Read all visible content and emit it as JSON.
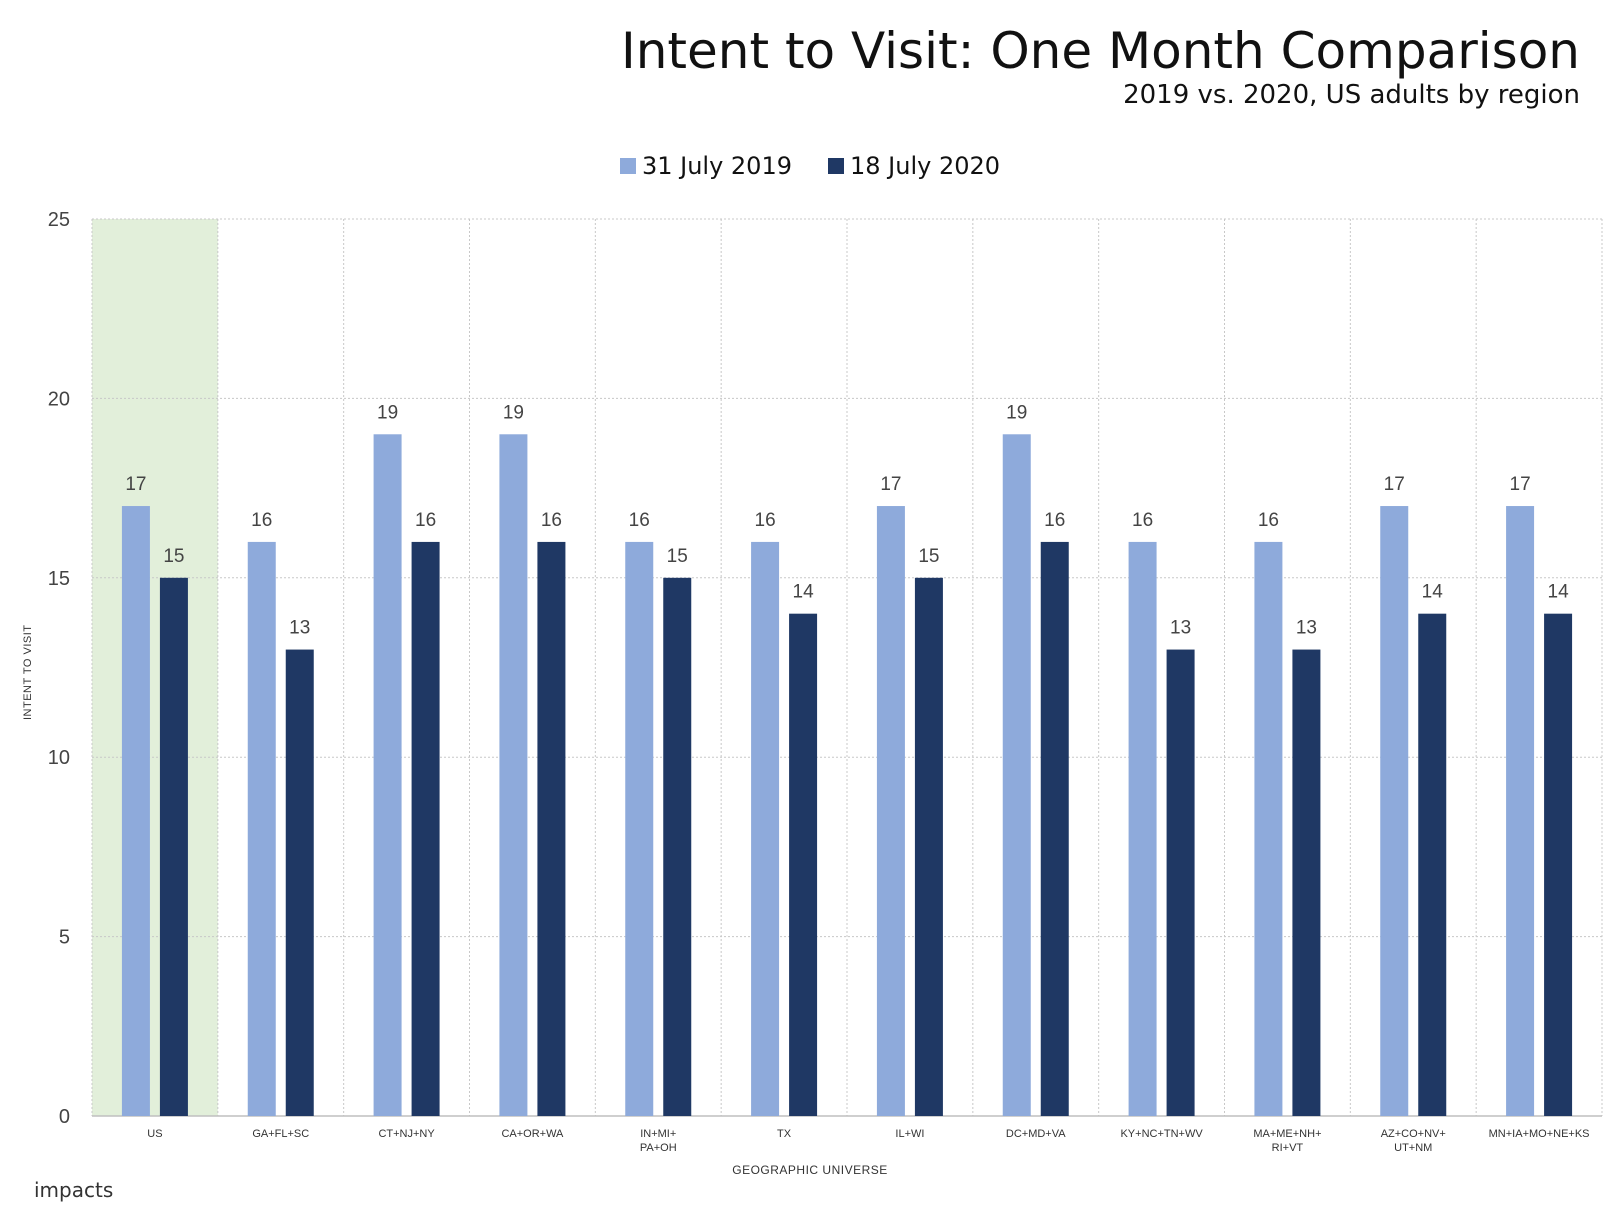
{
  "title": "Intent to Visit: One Month Comparison",
  "subtitle": "2019 vs. 2020, US adults by region",
  "logo_text": "impacts",
  "colors": {
    "series_2019": "#8eaadb",
    "series_2020": "#1f3864",
    "highlight": "#e2efda",
    "grid": "#c8c8c8"
  },
  "chart_data": {
    "type": "bar",
    "ylabel": "INTENT TO VISIT",
    "xlabel": "GEOGRAPHIC UNIVERSE",
    "ylim": [
      0,
      25
    ],
    "yticks": [
      0,
      5,
      10,
      15,
      20,
      25
    ],
    "grid": true,
    "legend_position": "top-center",
    "highlighted_category": "US",
    "categories": [
      [
        "US"
      ],
      [
        "GA+FL+SC"
      ],
      [
        "CT+NJ+NY"
      ],
      [
        "CA+OR+WA"
      ],
      [
        "IN+MI+",
        "PA+OH"
      ],
      [
        "TX"
      ],
      [
        "IL+WI"
      ],
      [
        "DC+MD+VA"
      ],
      [
        "KY+NC+TN+WV"
      ],
      [
        "MA+ME+NH+",
        "RI+VT"
      ],
      [
        "AZ+CO+NV+",
        "UT+NM"
      ],
      [
        "MN+IA+MO+NE+KS"
      ]
    ],
    "series": [
      {
        "name": "31 July 2019",
        "values": [
          17,
          16,
          19,
          19,
          16,
          16,
          17,
          19,
          16,
          16,
          17,
          17
        ]
      },
      {
        "name": "18 July 2020",
        "values": [
          15,
          13,
          16,
          16,
          15,
          14,
          15,
          16,
          13,
          13,
          14,
          14
        ]
      }
    ]
  }
}
